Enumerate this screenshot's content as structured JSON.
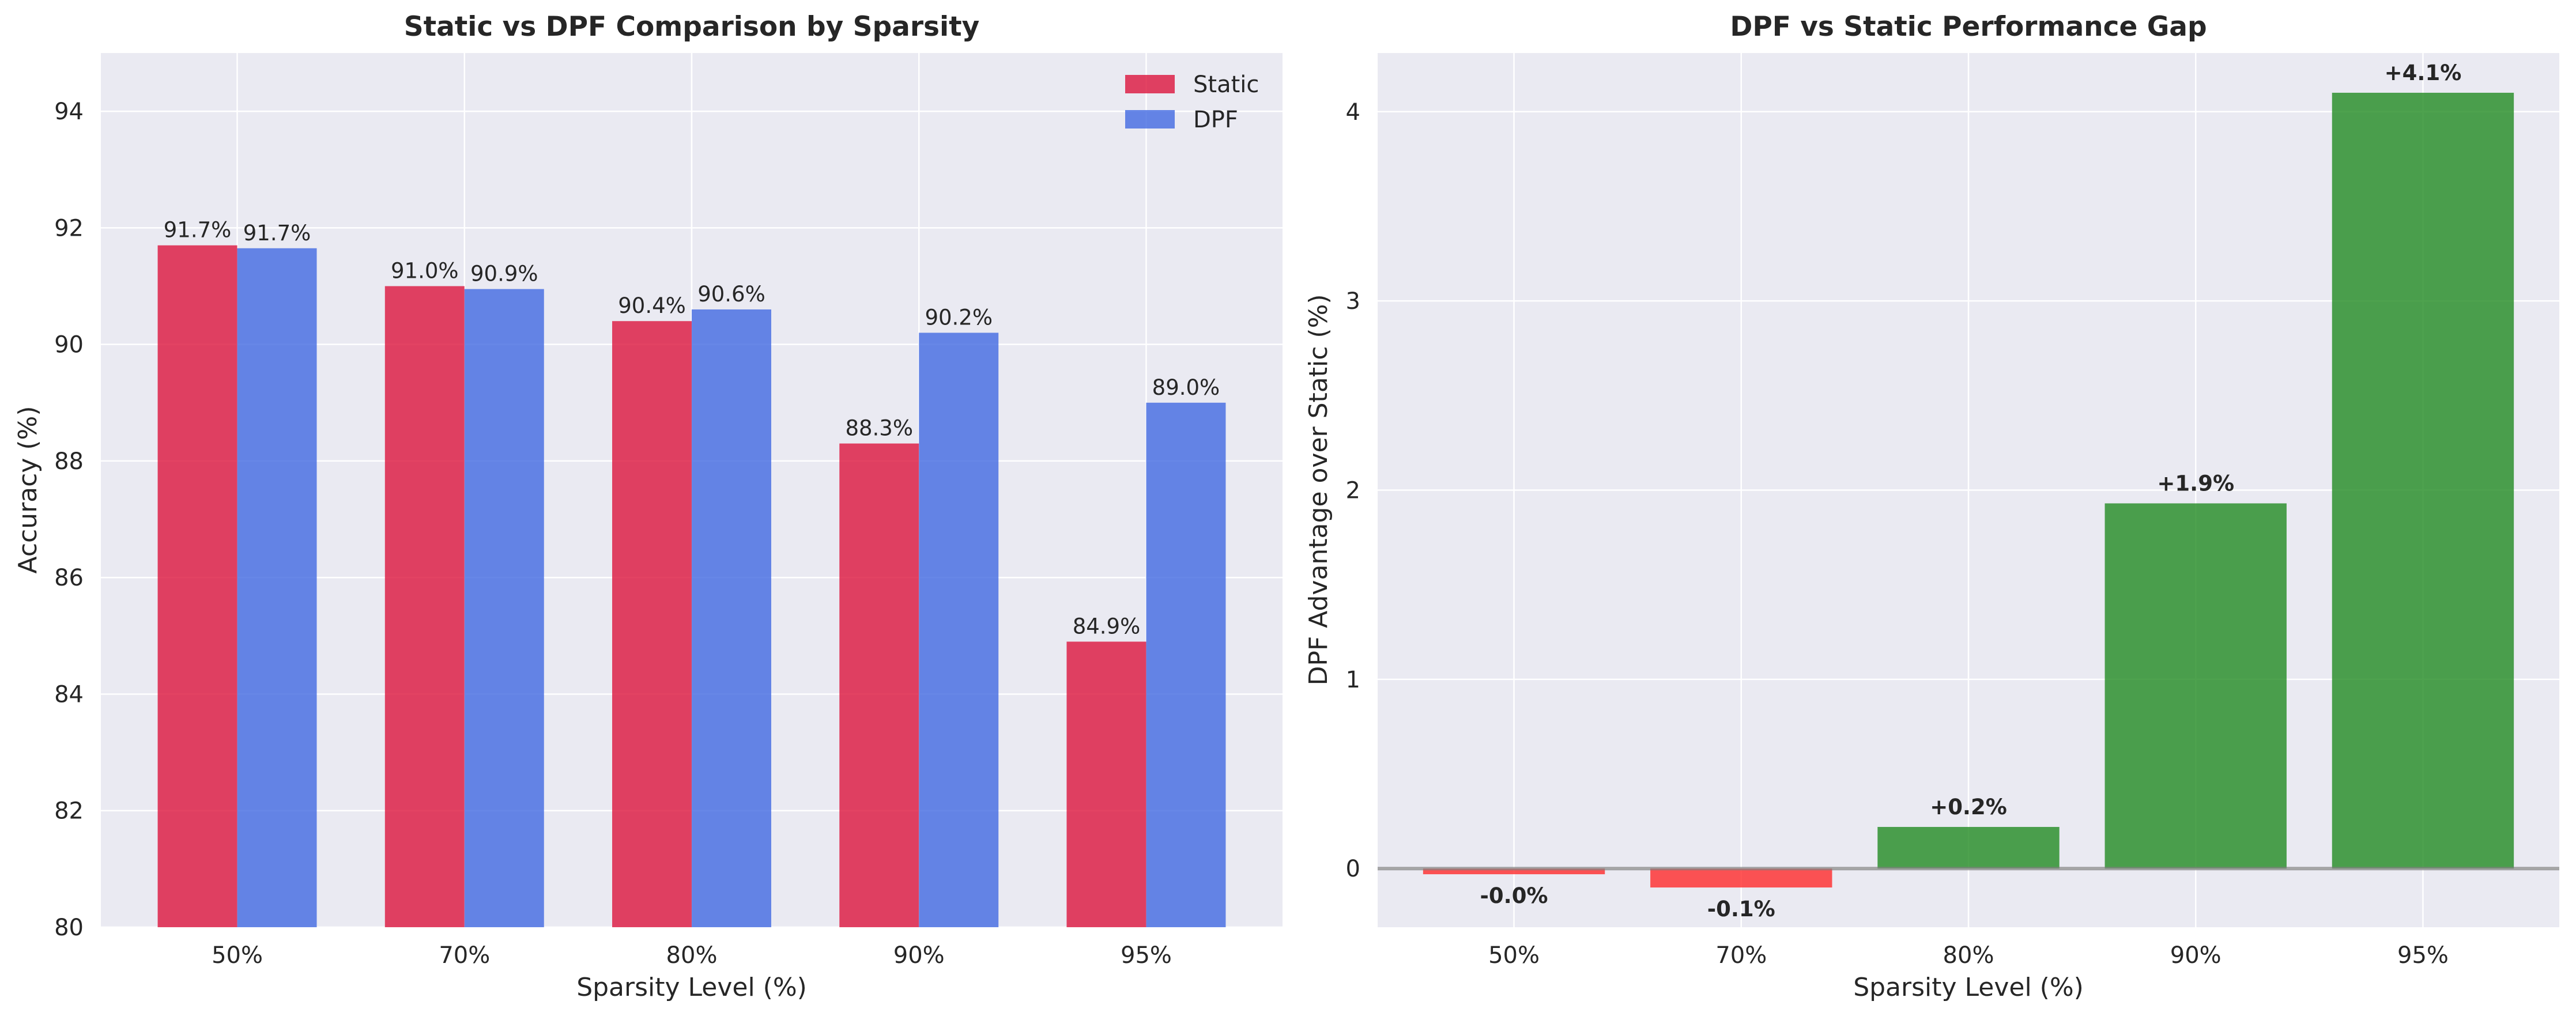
{
  "colors": {
    "background": "#ffffff",
    "plot_bg": "#EAEAF2",
    "grid": "#ffffff",
    "static": "#DC143C",
    "dpf": "#4169E1",
    "positive": "#228B22",
    "negative": "#FF2A2A",
    "zero_line": "#808080",
    "text": "#262626"
  },
  "chart_data": [
    {
      "type": "bar",
      "title": "Static vs DPF Comparison by Sparsity",
      "xlabel": "Sparsity Level (%)",
      "ylabel": "Accuracy (%)",
      "categories": [
        "50%",
        "70%",
        "80%",
        "90%",
        "95%"
      ],
      "series": [
        {
          "name": "Static",
          "values": [
            91.7,
            91.0,
            90.4,
            88.3,
            84.9
          ],
          "labels": [
            "91.7%",
            "91.0%",
            "90.4%",
            "88.3%",
            "84.9%"
          ]
        },
        {
          "name": "DPF",
          "values": [
            91.65,
            90.95,
            90.6,
            90.2,
            89.0
          ],
          "labels": [
            "91.7%",
            "90.9%",
            "90.6%",
            "90.2%",
            "89.0%"
          ]
        }
      ],
      "ylim": [
        80,
        95
      ],
      "yticks": [
        80,
        82,
        84,
        86,
        88,
        90,
        92,
        94
      ],
      "grid": true,
      "legend": "top-right"
    },
    {
      "type": "bar",
      "title": "DPF vs Static Performance Gap",
      "xlabel": "Sparsity Level (%)",
      "ylabel": "DPF Advantage over Static (%)",
      "categories": [
        "50%",
        "70%",
        "80%",
        "90%",
        "95%"
      ],
      "values": [
        -0.03,
        -0.1,
        0.22,
        1.93,
        4.1
      ],
      "labels": [
        "-0.0%",
        "-0.1%",
        "+0.2%",
        "+1.9%",
        "+4.1%"
      ],
      "ylim": [
        -0.31,
        4.31
      ],
      "yticks": [
        0,
        1,
        2,
        3,
        4
      ],
      "grid": true,
      "zero_line": true
    }
  ]
}
